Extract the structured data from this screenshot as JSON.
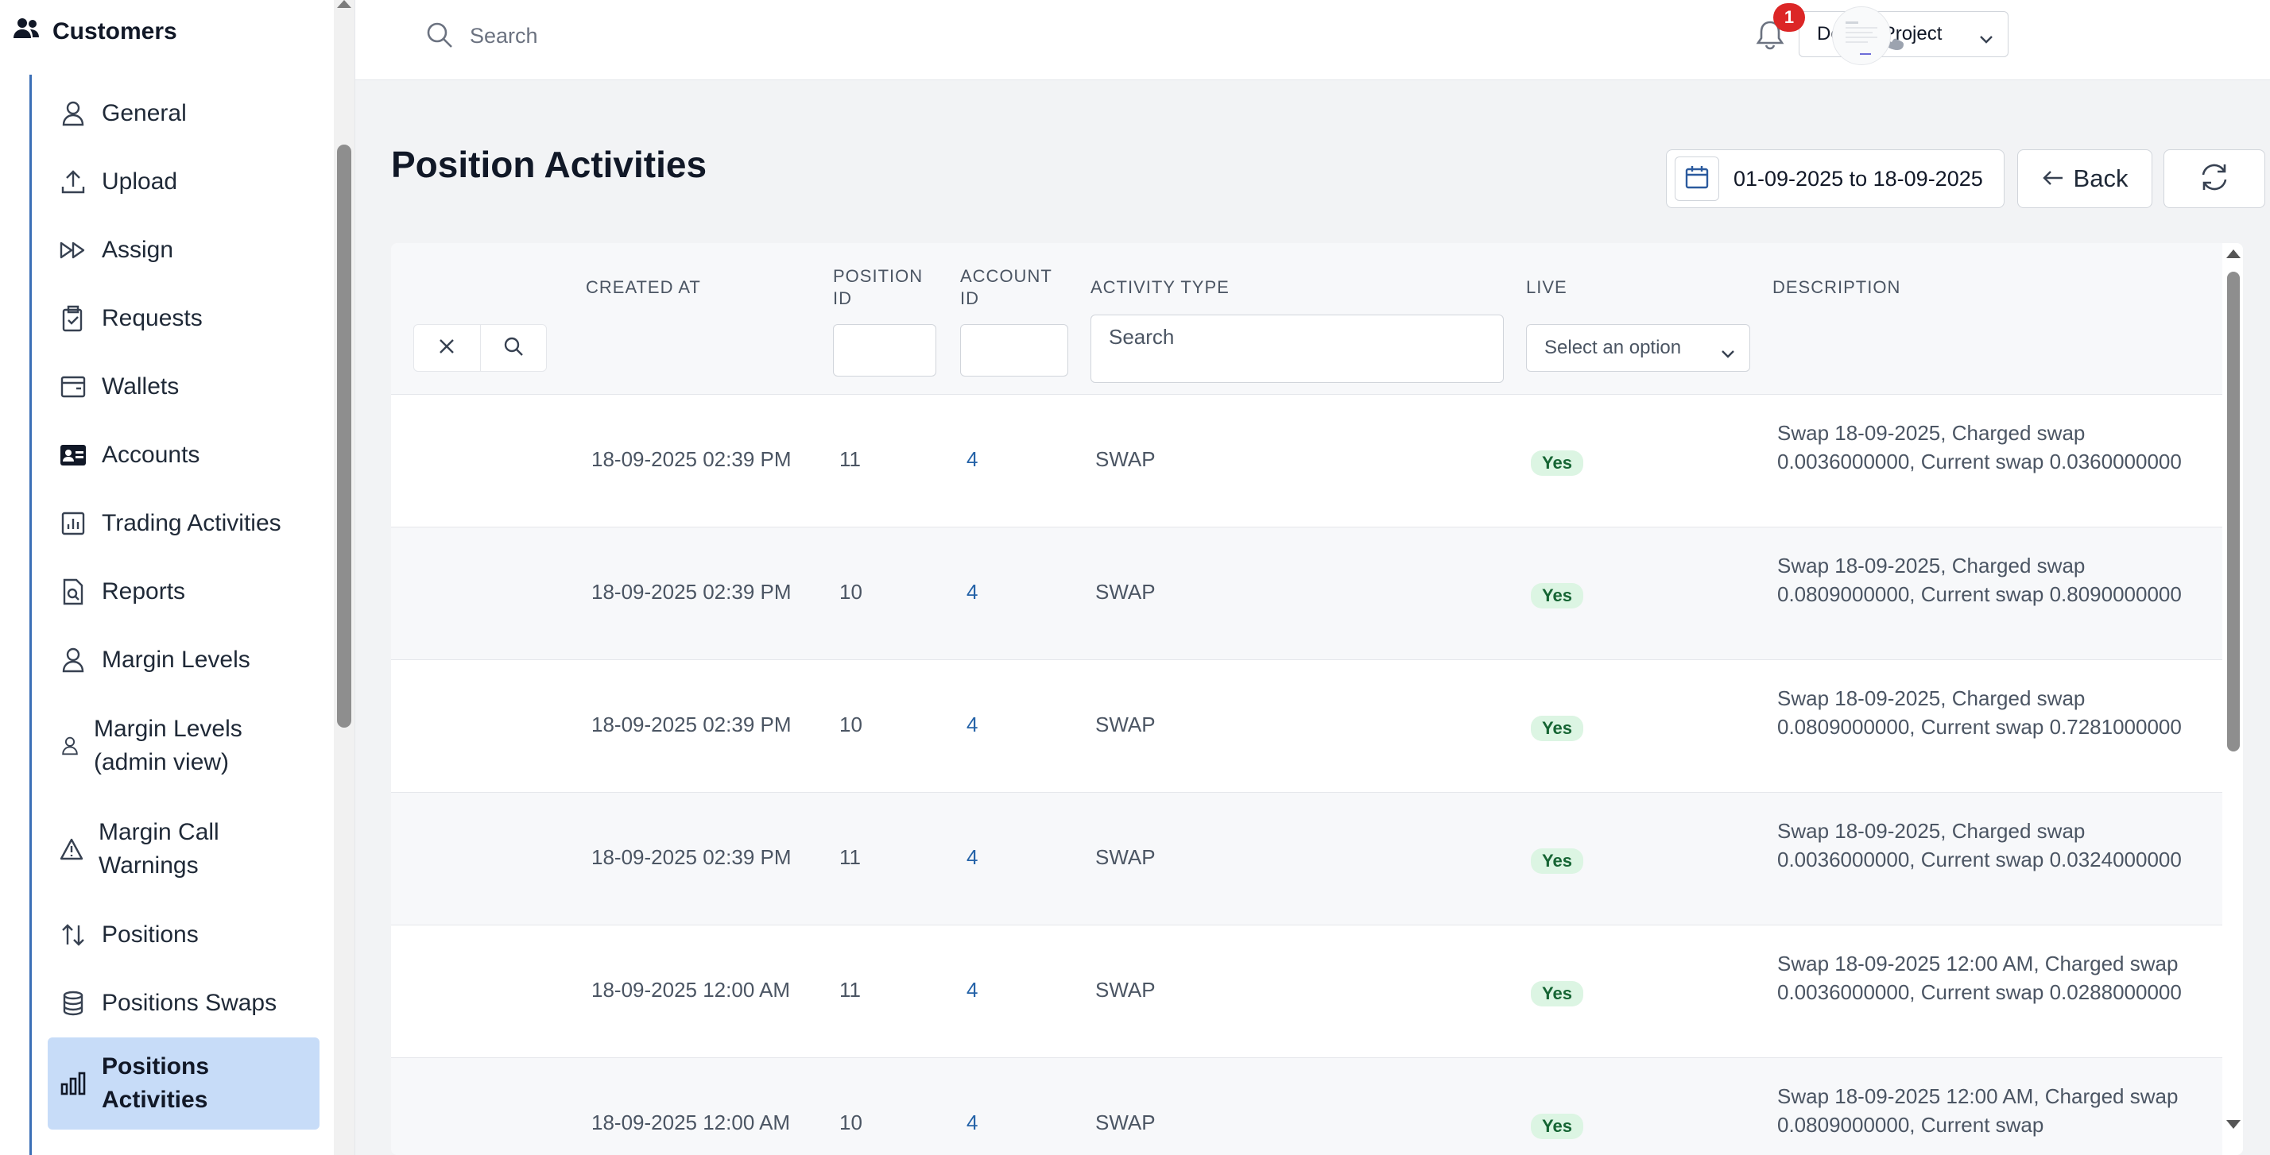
{
  "sidebar": {
    "section_title": "Customers",
    "items": [
      {
        "label": "General",
        "icon": "user-icon"
      },
      {
        "label": "Upload",
        "icon": "upload-icon"
      },
      {
        "label": "Assign",
        "icon": "fast-forward-icon"
      },
      {
        "label": "Requests",
        "icon": "clipboard-icon"
      },
      {
        "label": "Wallets",
        "icon": "wallet-icon"
      },
      {
        "label": "Accounts",
        "icon": "id-card-icon"
      },
      {
        "label": "Trading Activities",
        "icon": "chart-icon"
      },
      {
        "label": "Reports",
        "icon": "report-icon"
      },
      {
        "label": "Margin Levels",
        "icon": "user-icon"
      },
      {
        "label": "Margin Levels (admin view)",
        "icon": "user-icon"
      },
      {
        "label": "Margin Call Warnings",
        "icon": "warning-icon"
      },
      {
        "label": "Positions",
        "icon": "arrows-up-down-icon"
      },
      {
        "label": "Positions Swaps",
        "icon": "database-icon"
      },
      {
        "label": "Positions Activities",
        "icon": "bar-chart-icon",
        "active": true
      }
    ]
  },
  "topbar": {
    "search_placeholder": "Search",
    "project": "Default Project",
    "notification_count": "1"
  },
  "page": {
    "title": "Position Activities",
    "date_range": "01-09-2025 to 18-09-2025",
    "back_label": "Back"
  },
  "table": {
    "headers": {
      "created_at": "CREATED AT",
      "position_id_1": "POSITION",
      "position_id_2": "ID",
      "account_id_1": "ACCOUNT",
      "account_id_2": "ID",
      "activity_type": "ACTIVITY TYPE",
      "live": "LIVE",
      "description": "DESCRIPTION"
    },
    "filters": {
      "activity_type_placeholder": "Search",
      "live_placeholder": "Select an option"
    },
    "rows": [
      {
        "created_at": "18-09-2025 02:39 PM",
        "position_id": "11",
        "account_id": "4",
        "activity_type": "SWAP",
        "live": "Yes",
        "description": "Swap 18-09-2025, Charged swap 0.0036000000, Current swap 0.0360000000"
      },
      {
        "created_at": "18-09-2025 02:39 PM",
        "position_id": "10",
        "account_id": "4",
        "activity_type": "SWAP",
        "live": "Yes",
        "description": "Swap 18-09-2025, Charged swap 0.0809000000, Current swap 0.8090000000"
      },
      {
        "created_at": "18-09-2025 02:39 PM",
        "position_id": "10",
        "account_id": "4",
        "activity_type": "SWAP",
        "live": "Yes",
        "description": "Swap 18-09-2025, Charged swap 0.0809000000, Current swap 0.7281000000"
      },
      {
        "created_at": "18-09-2025 02:39 PM",
        "position_id": "11",
        "account_id": "4",
        "activity_type": "SWAP",
        "live": "Yes",
        "description": "Swap 18-09-2025, Charged swap 0.0036000000, Current swap 0.0324000000"
      },
      {
        "created_at": "18-09-2025 12:00 AM",
        "position_id": "11",
        "account_id": "4",
        "activity_type": "SWAP",
        "live": "Yes",
        "description": "Swap 18-09-2025 12:00 AM, Charged swap 0.0036000000, Current swap 0.0288000000"
      },
      {
        "created_at": "18-09-2025 12:00 AM",
        "position_id": "10",
        "account_id": "4",
        "activity_type": "SWAP",
        "live": "Yes",
        "description": "Swap 18-09-2025 12:00 AM, Charged swap 0.0809000000, Current swap"
      }
    ]
  },
  "colors": {
    "accent": "#3b6fb6",
    "active_bg": "#c7dcf8",
    "badge_red": "#dc2626",
    "live_badge_bg": "#dcf5e3",
    "live_badge_text": "#166534"
  }
}
